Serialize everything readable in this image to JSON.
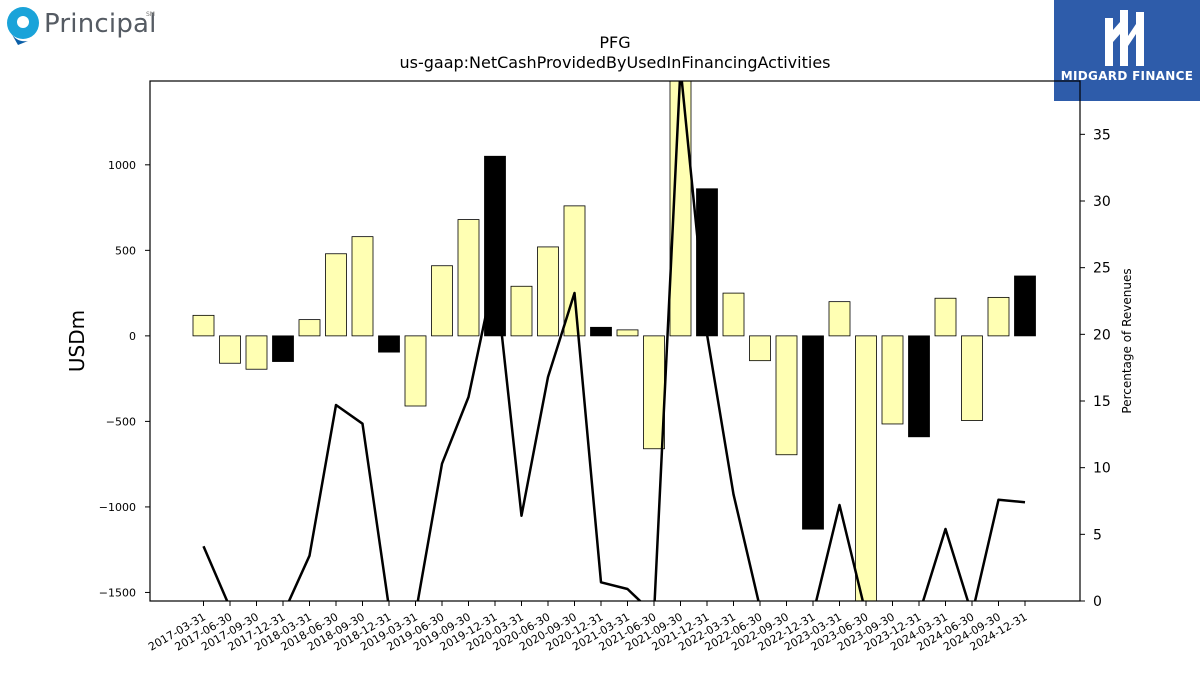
{
  "logos": {
    "left_text": "Principal",
    "left_mark": "SM",
    "left_icon": "principal-p-icon",
    "right_text": "MIDGARD FINANCE",
    "right_icon": "midgard-m-icon",
    "right_bg": "#2e5caa"
  },
  "chart_data": {
    "type": "bar",
    "title": "PFG",
    "subtitle": "us-gaap:NetCashProvidedByUsedInFinancingActivities",
    "ylabel": "USDm",
    "y2label": "Percentage of Revenues",
    "ylim": [
      -1550,
      1490
    ],
    "y2lim": [
      0,
      39
    ],
    "yticks": [
      -1500,
      -1000,
      -500,
      0,
      500,
      1000
    ],
    "y2ticks": [
      0,
      5,
      10,
      15,
      20,
      25,
      30,
      35
    ],
    "grid": false,
    "colors": {
      "bar_positive": "#ffffb3",
      "bar_highlight": "#000000",
      "line": "#000000"
    },
    "categories": [
      "2017-03-31",
      "2017-06-30",
      "2017-09-30",
      "2017-12-31",
      "2018-03-31",
      "2018-06-30",
      "2018-09-30",
      "2018-12-31",
      "2019-03-31",
      "2019-06-30",
      "2019-09-30",
      "2019-12-31",
      "2020-03-31",
      "2020-06-30",
      "2020-09-30",
      "2020-12-31",
      "2021-03-31",
      "2021-06-30",
      "2021-09-30",
      "2021-12-31",
      "2022-03-31",
      "2022-06-30",
      "2022-09-30",
      "2022-12-31",
      "2023-03-31",
      "2023-06-30",
      "2023-09-30",
      "2023-12-31",
      "2024-03-31",
      "2024-06-30",
      "2024-09-30",
      "2024-12-31"
    ],
    "series": [
      {
        "values": [
          120,
          -160,
          -195,
          -150,
          95,
          480,
          580,
          -95,
          -410,
          410,
          680,
          1050,
          290,
          520,
          760,
          50,
          35,
          -660,
          1500,
          860,
          250,
          -145,
          -695,
          -1130,
          200,
          -1550,
          -515,
          -590,
          220,
          -495,
          225,
          350
        ]
      },
      {
        "values": [
          4.1,
          -0.5,
          -1,
          -1,
          3.4,
          14.7,
          13.3,
          -0.5,
          -1,
          10.3,
          15.3,
          24.7,
          6.4,
          16.8,
          23.1,
          1.4,
          0.9,
          -1,
          40,
          20,
          8,
          -0.5,
          -1,
          -1,
          7.2,
          -1,
          -1,
          -1,
          5.4,
          -1,
          7.6,
          7.4
        ]
      }
    ],
    "highlight": [
      false,
      false,
      false,
      true,
      false,
      false,
      false,
      true,
      false,
      false,
      false,
      true,
      false,
      false,
      false,
      true,
      false,
      false,
      false,
      true,
      false,
      false,
      false,
      true,
      false,
      false,
      false,
      true,
      false,
      false,
      false,
      true
    ]
  }
}
